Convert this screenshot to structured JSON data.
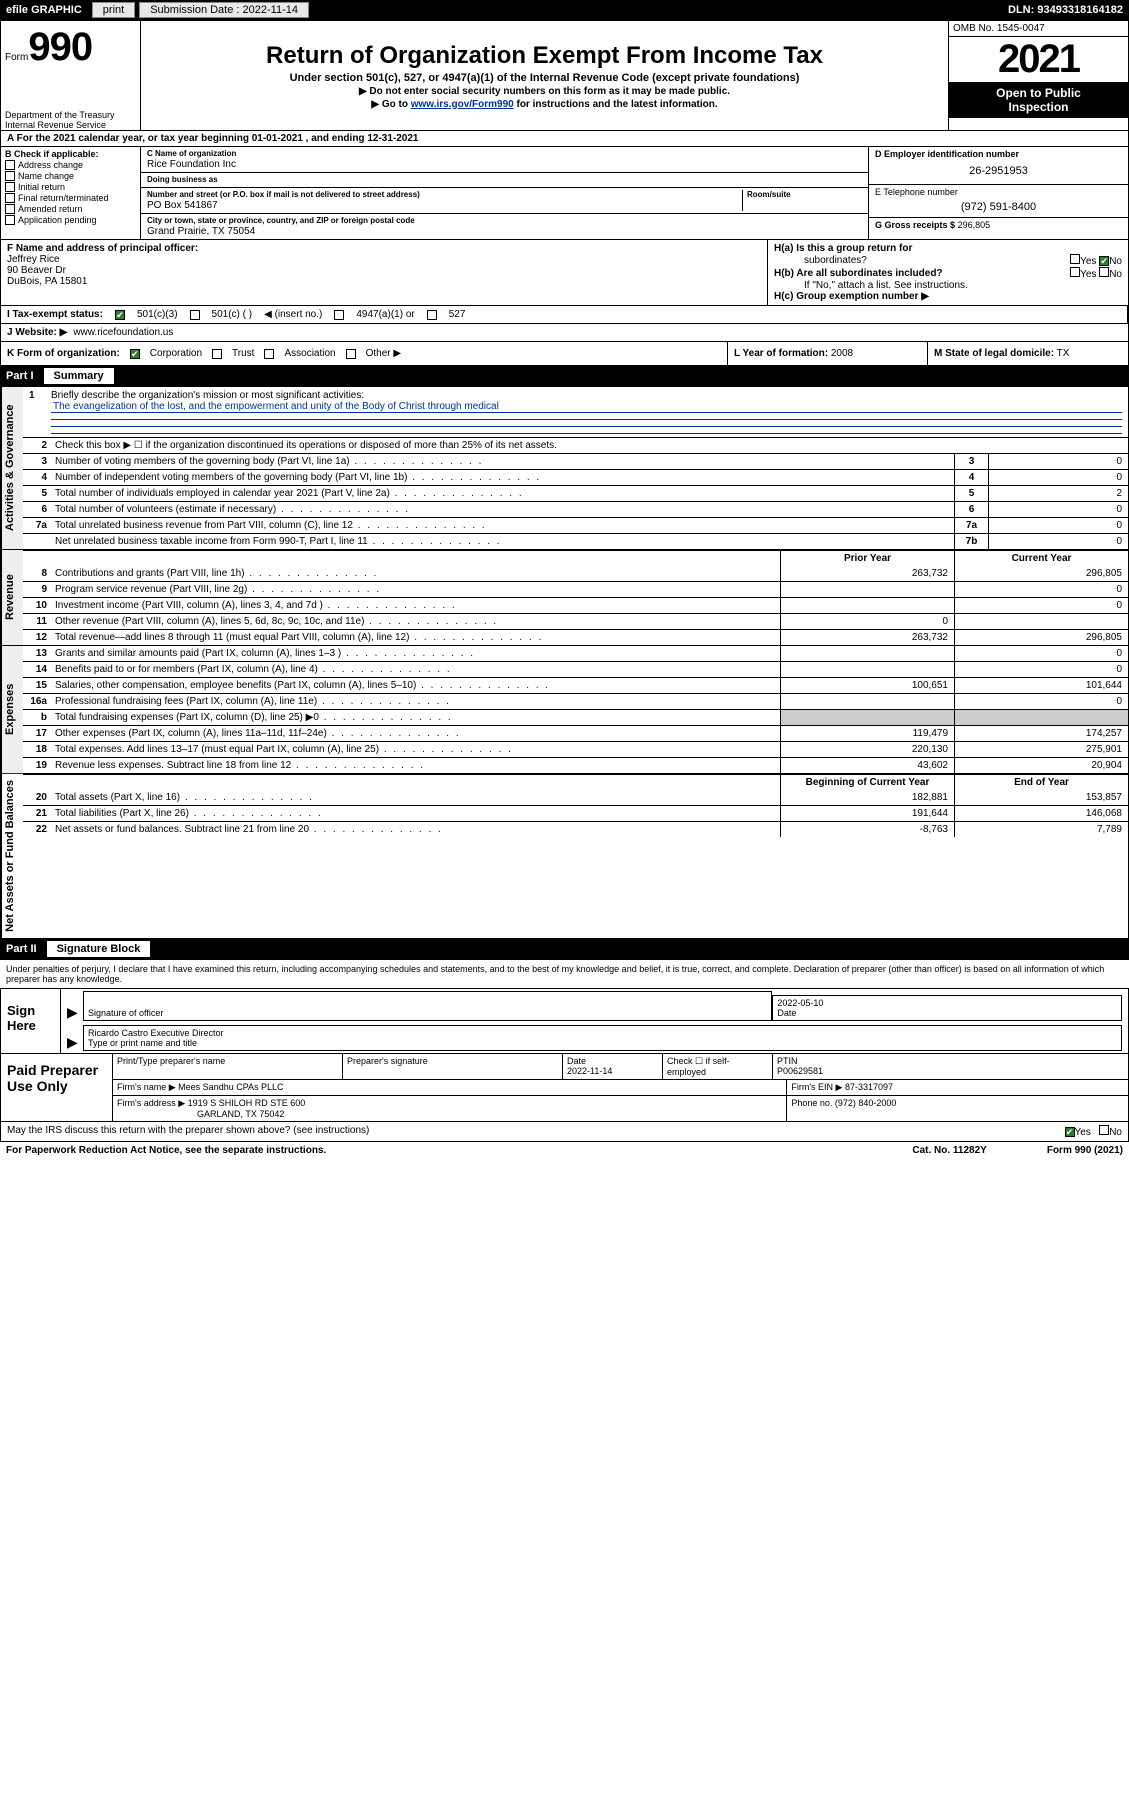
{
  "meta": {
    "efile_label": "efile GRAPHIC",
    "print_btn": "print",
    "submission_date_label": "Submission Date :",
    "submission_date": "2022-11-14",
    "dln_label": "DLN:",
    "dln": "93493318164182"
  },
  "header": {
    "form_word": "Form",
    "form_number": "990",
    "dept": "Department of the Treasury",
    "irs": "Internal Revenue Service",
    "title": "Return of Organization Exempt From Income Tax",
    "subtitle": "Under section 501(c), 527, or 4947(a)(1) of the Internal Revenue Code (except private foundations)",
    "note1": "▶ Do not enter social security numbers on this form as it may be made public.",
    "note2_pre": "▶ Go to ",
    "note2_link": "www.irs.gov/Form990",
    "note2_post": " for instructions and the latest information.",
    "omb": "OMB No. 1545-0047",
    "year": "2021",
    "open_pub1": "Open to Public",
    "open_pub2": "Inspection"
  },
  "row_a": "A For the 2021 calendar year, or tax year beginning 01-01-2021   , and ending 12-31-2021",
  "col_b": {
    "label": "B Check if applicable:",
    "items": [
      "Address change",
      "Name change",
      "Initial return",
      "Final return/terminated",
      "Amended return",
      "Application pending"
    ]
  },
  "col_c": {
    "name_lbl": "C Name of organization",
    "name": "Rice Foundation Inc",
    "dba_lbl": "Doing business as",
    "dba": "",
    "addr_lbl": "Number and street (or P.O. box if mail is not delivered to street address)",
    "addr": "PO Box 541867",
    "room_lbl": "Room/suite",
    "city_lbl": "City or town, state or province, country, and ZIP or foreign postal code",
    "city": "Grand Prairie, TX   75054"
  },
  "col_d": {
    "ein_lbl": "D Employer identification number",
    "ein": "26-2951953",
    "tel_lbl": "E Telephone number",
    "tel": "(972) 591-8400",
    "gross_lbl": "G Gross receipts $",
    "gross": "296,805"
  },
  "row_f": {
    "lbl": "F Name and address of principal officer:",
    "name": "Jeffrey Rice",
    "addr1": "90 Beaver Dr",
    "addr2": "DuBois, PA   15801"
  },
  "row_h": {
    "ha_lbl": "H(a)  Is this a group return for",
    "ha_sub": "subordinates?",
    "yes": "Yes",
    "no": "No",
    "hb_lbl": "H(b)  Are all subordinates included?",
    "hb_note": "If \"No,\" attach a list. See instructions.",
    "hc_lbl": "H(c)  Group exemption number ▶"
  },
  "row_i": {
    "lbl": "I   Tax-exempt status:",
    "c3": "501(c)(3)",
    "c": "501(c) (  )",
    "c_ins": "◀ (insert no.)",
    "a1": "4947(a)(1) or",
    "s527": "527"
  },
  "row_j": {
    "lbl": "J   Website: ▶",
    "val": "www.ricefoundation.us"
  },
  "row_k": {
    "lbl": "K Form of organization:",
    "corp": "Corporation",
    "trust": "Trust",
    "assoc": "Association",
    "other": "Other ▶"
  },
  "row_l": {
    "lbl": "L Year of formation:",
    "val": "2008"
  },
  "row_m": {
    "lbl": "M State of legal domicile:",
    "val": "TX"
  },
  "part1": {
    "label": "Part I",
    "title": "Summary",
    "side_act": "Activities & Governance",
    "side_rev": "Revenue",
    "side_exp": "Expenses",
    "side_net": "Net Assets or Fund Balances",
    "l1_lbl": "Briefly describe the organization's mission or most significant activities:",
    "l1_text": "The evangelization of the lost, and the empowerment and unity of the Body of Christ through medical",
    "l2": "Check this box ▶ ☐  if the organization discontinued its operations or disposed of more than 25% of its net assets.",
    "l3": "Number of voting members of the governing body (Part VI, line 1a)",
    "l4": "Number of independent voting members of the governing body (Part VI, line 1b)",
    "l5": "Total number of individuals employed in calendar year 2021 (Part V, line 2a)",
    "l6": "Total number of volunteers (estimate if necessary)",
    "l7a": "Total unrelated business revenue from Part VIII, column (C), line 12",
    "l7b": "Net unrelated business taxable income from Form 990-T, Part I, line 11",
    "vals": {
      "3": "0",
      "4": "0",
      "5": "2",
      "6": "0",
      "7a": "0",
      "7b": "0"
    },
    "col_prior": "Prior Year",
    "col_curr": "Current Year",
    "rows_rev": [
      {
        "n": "8",
        "d": "Contributions and grants (Part VIII, line 1h)",
        "p": "263,732",
        "c": "296,805"
      },
      {
        "n": "9",
        "d": "Program service revenue (Part VIII, line 2g)",
        "p": "",
        "c": "0"
      },
      {
        "n": "10",
        "d": "Investment income (Part VIII, column (A), lines 3, 4, and 7d )",
        "p": "",
        "c": "0"
      },
      {
        "n": "11",
        "d": "Other revenue (Part VIII, column (A), lines 5, 6d, 8c, 9c, 10c, and 11e)",
        "p": "0",
        "c": ""
      },
      {
        "n": "12",
        "d": "Total revenue—add lines 8 through 11 (must equal Part VIII, column (A), line 12)",
        "p": "263,732",
        "c": "296,805"
      }
    ],
    "rows_exp": [
      {
        "n": "13",
        "d": "Grants and similar amounts paid (Part IX, column (A), lines 1–3 )",
        "p": "",
        "c": "0"
      },
      {
        "n": "14",
        "d": "Benefits paid to or for members (Part IX, column (A), line 4)",
        "p": "",
        "c": "0"
      },
      {
        "n": "15",
        "d": "Salaries, other compensation, employee benefits (Part IX, column (A), lines 5–10)",
        "p": "100,651",
        "c": "101,644"
      },
      {
        "n": "16a",
        "d": "Professional fundraising fees (Part IX, column (A), line 11e)",
        "p": "",
        "c": "0"
      },
      {
        "n": "b",
        "d": "Total fundraising expenses (Part IX, column (D), line 25) ▶0",
        "p": "SHADE",
        "c": "SHADE"
      },
      {
        "n": "17",
        "d": "Other expenses (Part IX, column (A), lines 11a–11d, 11f–24e)",
        "p": "119,479",
        "c": "174,257"
      },
      {
        "n": "18",
        "d": "Total expenses. Add lines 13–17 (must equal Part IX, column (A), line 25)",
        "p": "220,130",
        "c": "275,901"
      },
      {
        "n": "19",
        "d": "Revenue less expenses. Subtract line 18 from line 12",
        "p": "43,602",
        "c": "20,904"
      }
    ],
    "col_beg": "Beginning of Current Year",
    "col_end": "End of Year",
    "rows_net": [
      {
        "n": "20",
        "d": "Total assets (Part X, line 16)",
        "p": "182,881",
        "c": "153,857"
      },
      {
        "n": "21",
        "d": "Total liabilities (Part X, line 26)",
        "p": "191,644",
        "c": "146,068"
      },
      {
        "n": "22",
        "d": "Net assets or fund balances. Subtract line 21 from line 20",
        "p": "-8,763",
        "c": "7,789"
      }
    ]
  },
  "part2": {
    "label": "Part II",
    "title": "Signature Block",
    "intro": "Under penalties of perjury, I declare that I have examined this return, including accompanying schedules and statements, and to the best of my knowledge and belief, it is true, correct, and complete. Declaration of preparer (other than officer) is based on all information of which preparer has any knowledge.",
    "sign_here": "Sign Here",
    "sig_officer_lbl": "Signature of officer",
    "sig_date": "2022-05-10",
    "date_lbl": "Date",
    "officer_name": "Ricardo Castro  Executive Director",
    "name_lbl": "Type or print name and title",
    "paid_lbl": "Paid Preparer Use Only",
    "prep_name_lbl": "Print/Type preparer's name",
    "prep_sig_lbl": "Preparer's signature",
    "prep_date_lbl": "Date",
    "prep_date": "2022-11-14",
    "check_if": "Check ☐ if self-employed",
    "ptin_lbl": "PTIN",
    "ptin": "P00629581",
    "firm_name_lbl": "Firm's name     ▶",
    "firm_name": "Mees Sandhu CPAs PLLC",
    "firm_ein_lbl": "Firm's EIN ▶",
    "firm_ein": "87-3317097",
    "firm_addr_lbl": "Firm's address ▶",
    "firm_addr1": "1919 S SHILOH RD STE 600",
    "firm_addr2": "GARLAND, TX  75042",
    "phone_lbl": "Phone no.",
    "phone": "(972) 840-2000",
    "discuss": "May the IRS discuss this return with the preparer shown above? (see instructions)",
    "yes": "Yes",
    "no": "No"
  },
  "footer": {
    "pra": "For Paperwork Reduction Act Notice, see the separate instructions.",
    "cat": "Cat. No. 11282Y",
    "form": "Form 990 (2021)"
  }
}
